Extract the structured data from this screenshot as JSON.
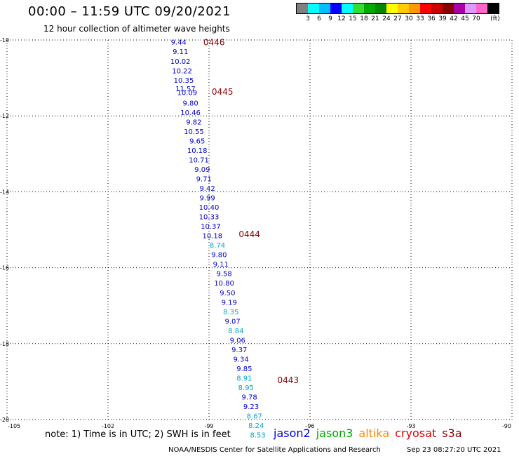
{
  "header": {
    "title": "00:00 – 11:59 UTC 09/20/2021",
    "subtitle": "12 hour collection of altimeter wave heights"
  },
  "legend": {
    "unit": "(ft)",
    "colors": [
      "#808080",
      "#00ffff",
      "#00bfff",
      "#0000ff",
      "#00ffff",
      "#33dd33",
      "#00aa00",
      "#008800",
      "#ffff00",
      "#ffcc00",
      "#ff9900",
      "#ff0000",
      "#cc0000",
      "#880000",
      "#aa00aa",
      "#dd99ff",
      "#ff66cc",
      "#000000"
    ],
    "labels": [
      "3",
      "6",
      "9",
      "12",
      "15",
      "18",
      "21",
      "24",
      "27",
      "30",
      "33",
      "36",
      "39",
      "42",
      "45",
      "70"
    ]
  },
  "axes": {
    "lat_ticks": [
      "-10",
      "-12",
      "-14",
      "-16",
      "-18",
      "-20"
    ],
    "lon_ticks": [
      "-105",
      "-102",
      "-99",
      "-96",
      "-93",
      "-90"
    ]
  },
  "wave_heights": [
    {
      "lat": -10.05,
      "lon": -99.9,
      "value": "9.44",
      "color": "#0000cc"
    },
    {
      "lat": -10.3,
      "lon": -99.85,
      "value": "9.11",
      "color": "#0000cc"
    },
    {
      "lat": -10.55,
      "lon": -99.85,
      "value": "10.02",
      "color": "#0000cc"
    },
    {
      "lat": -10.8,
      "lon": -99.8,
      "value": "10.22",
      "color": "#0000cc"
    },
    {
      "lat": -11.05,
      "lon": -99.75,
      "value": "10.35",
      "color": "#0000cc"
    },
    {
      "lat": -11.28,
      "lon": -99.7,
      "value": "11.57",
      "color": "#0000cc"
    },
    {
      "lat": -11.38,
      "lon": -99.65,
      "value": "10.09",
      "color": "#0000cc"
    },
    {
      "lat": -11.65,
      "lon": -99.55,
      "value": "9.80",
      "color": "#0000cc"
    },
    {
      "lat": -11.9,
      "lon": -99.55,
      "value": "10.46",
      "color": "#0000cc"
    },
    {
      "lat": -12.15,
      "lon": -99.45,
      "value": "9.82",
      "color": "#0000cc"
    },
    {
      "lat": -12.4,
      "lon": -99.45,
      "value": "10.55",
      "color": "#0000cc"
    },
    {
      "lat": -12.65,
      "lon": -99.35,
      "value": "9.65",
      "color": "#0000cc"
    },
    {
      "lat": -12.9,
      "lon": -99.35,
      "value": "10.18",
      "color": "#0000cc"
    },
    {
      "lat": -13.15,
      "lon": -99.3,
      "value": "10.71",
      "color": "#0000cc"
    },
    {
      "lat": -13.4,
      "lon": -99.2,
      "value": "9.09",
      "color": "#0000cc"
    },
    {
      "lat": -13.65,
      "lon": -99.15,
      "value": "9.71",
      "color": "#0000cc"
    },
    {
      "lat": -13.9,
      "lon": -99.05,
      "value": "9.42",
      "color": "#0000cc"
    },
    {
      "lat": -14.15,
      "lon": -99.05,
      "value": "9.99",
      "color": "#0000cc"
    },
    {
      "lat": -14.4,
      "lon": -99.0,
      "value": "10.40",
      "color": "#0000cc"
    },
    {
      "lat": -14.65,
      "lon": -99.0,
      "value": "10.33",
      "color": "#0000cc"
    },
    {
      "lat": -14.9,
      "lon": -98.95,
      "value": "10.37",
      "color": "#0000cc"
    },
    {
      "lat": -15.15,
      "lon": -98.9,
      "value": "10.18",
      "color": "#0000cc"
    },
    {
      "lat": -15.4,
      "lon": -98.75,
      "value": "8.74",
      "color": "#00aacc"
    },
    {
      "lat": -15.65,
      "lon": -98.7,
      "value": "9.80",
      "color": "#0000cc"
    },
    {
      "lat": -15.9,
      "lon": -98.65,
      "value": "9.11",
      "color": "#0000cc"
    },
    {
      "lat": -16.15,
      "lon": -98.55,
      "value": "9.58",
      "color": "#0000cc"
    },
    {
      "lat": -16.4,
      "lon": -98.55,
      "value": "10.80",
      "color": "#0000cc"
    },
    {
      "lat": -16.65,
      "lon": -98.45,
      "value": "9.50",
      "color": "#0000cc"
    },
    {
      "lat": -16.9,
      "lon": -98.4,
      "value": "9.19",
      "color": "#0000cc"
    },
    {
      "lat": -17.15,
      "lon": -98.35,
      "value": "8.35",
      "color": "#00aacc"
    },
    {
      "lat": -17.4,
      "lon": -98.3,
      "value": "9.07",
      "color": "#0000cc"
    },
    {
      "lat": -17.65,
      "lon": -98.2,
      "value": "8.84",
      "color": "#00aacc"
    },
    {
      "lat": -17.9,
      "lon": -98.15,
      "value": "9.06",
      "color": "#0000cc"
    },
    {
      "lat": -18.15,
      "lon": -98.1,
      "value": "9.37",
      "color": "#0000cc"
    },
    {
      "lat": -18.4,
      "lon": -98.05,
      "value": "9.34",
      "color": "#0000cc"
    },
    {
      "lat": -18.65,
      "lon": -97.95,
      "value": "9.85",
      "color": "#0000cc"
    },
    {
      "lat": -18.9,
      "lon": -97.95,
      "value": "8.91",
      "color": "#00aacc"
    },
    {
      "lat": -19.15,
      "lon": -97.9,
      "value": "8.95",
      "color": "#00aacc"
    },
    {
      "lat": -19.4,
      "lon": -97.8,
      "value": "9.78",
      "color": "#0000cc"
    },
    {
      "lat": -19.65,
      "lon": -97.75,
      "value": "9.23",
      "color": "#0000cc"
    },
    {
      "lat": -19.9,
      "lon": -97.65,
      "value": "8.67",
      "color": "#00aacc"
    },
    {
      "lat": -20.15,
      "lon": -97.6,
      "value": "8.24",
      "color": "#00aacc"
    },
    {
      "lat": -20.4,
      "lon": -97.55,
      "value": "8.53",
      "color": "#00aacc"
    }
  ],
  "time_labels": [
    {
      "lat": -10.05,
      "lon": -98.85,
      "value": "0446"
    },
    {
      "lat": -11.35,
      "lon": -98.6,
      "value": "0445"
    },
    {
      "lat": -15.1,
      "lon": -97.8,
      "value": "0444"
    },
    {
      "lat": -18.95,
      "lon": -96.65,
      "value": "0443"
    }
  ],
  "time_label_color": "#880000",
  "footer": {
    "note": "note: 1) Time is in UTC; 2) SWH is in feet",
    "satellites": [
      {
        "name": "jason2",
        "color": "#0000dd"
      },
      {
        "name": "jason3",
        "color": "#00aa00"
      },
      {
        "name": "altika",
        "color": "#ff8800"
      },
      {
        "name": "cryosat",
        "color": "#dd0000"
      },
      {
        "name": "s3a",
        "color": "#880000"
      }
    ],
    "credit": "NOAA/NESDIS Center for Satellite Applications and Research",
    "timestamp": "Sep 23 08:27:20 UTC 2021"
  }
}
